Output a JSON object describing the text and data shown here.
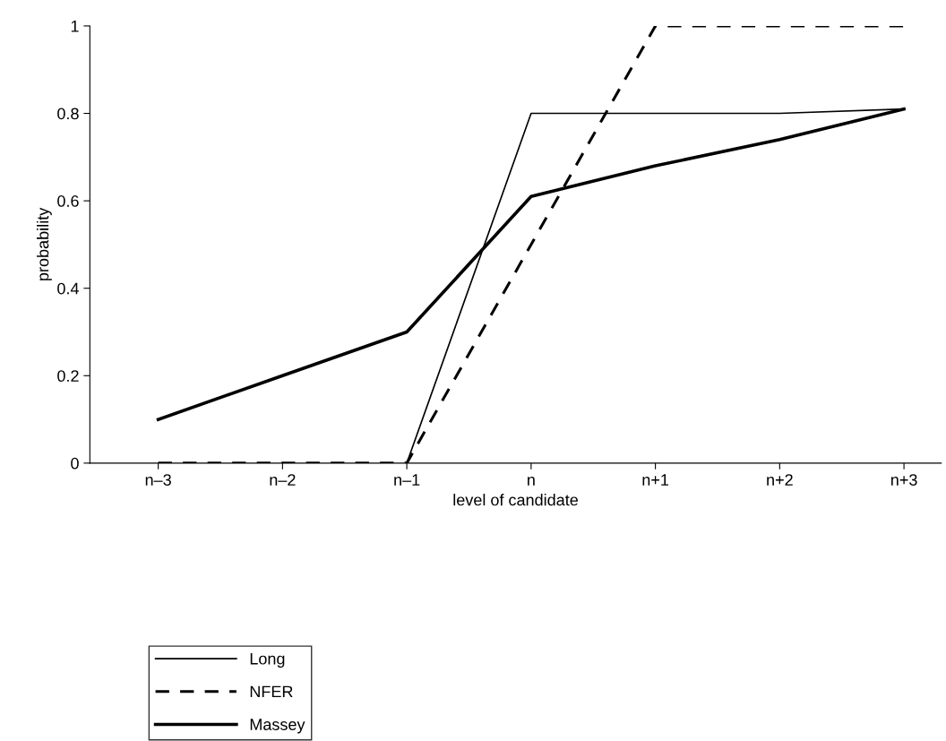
{
  "chart_data": {
    "type": "line",
    "xlabel": "level of candidate",
    "ylabel": "probability",
    "categories": [
      "n–3",
      "n–2",
      "n–1",
      "n",
      "n+1",
      "n+2",
      "n+3"
    ],
    "series": [
      {
        "name": "Long",
        "color": "#000000",
        "line_style": "solid",
        "values": [
          null,
          null,
          0,
          0.8,
          0.8,
          0.8,
          0.81
        ]
      },
      {
        "name": "NFER",
        "color": "#000000",
        "line_style": "dashed",
        "values": [
          0,
          0,
          0,
          0.5,
          1,
          1,
          1
        ]
      },
      {
        "name": "Massey",
        "color": "#000000",
        "line_style": "solid",
        "values": [
          0.1,
          0.2,
          0.3,
          0.61,
          0.68,
          0.74,
          0.81
        ]
      }
    ],
    "ylim": [
      0,
      1
    ],
    "yticks": [
      0,
      0.2,
      0.4,
      0.6,
      0.8,
      1
    ],
    "grid": false,
    "legend": "bottom",
    "marker": "none"
  }
}
